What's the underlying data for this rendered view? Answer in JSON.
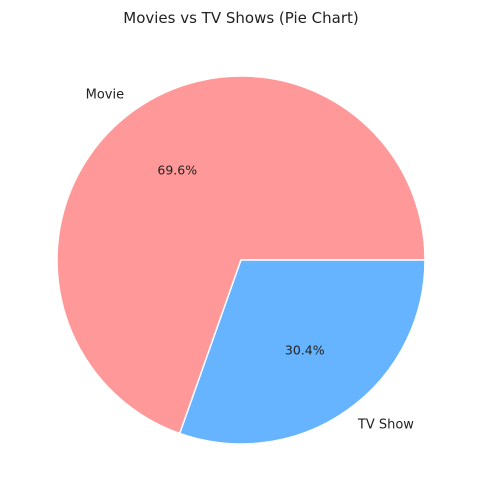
{
  "chart_data": {
    "type": "pie",
    "title": "Movies vs TV Shows (Pie Chart)",
    "slices": [
      {
        "label": "Movie",
        "value": 69.6,
        "pct_label": "69.6%",
        "color": "#ff9999"
      },
      {
        "label": "TV Show",
        "value": 30.4,
        "pct_label": "30.4%",
        "color": "#66b3ff"
      }
    ],
    "start_angle_deg": 0,
    "direction": "counterclockwise",
    "edge_color": "#ffffff"
  }
}
